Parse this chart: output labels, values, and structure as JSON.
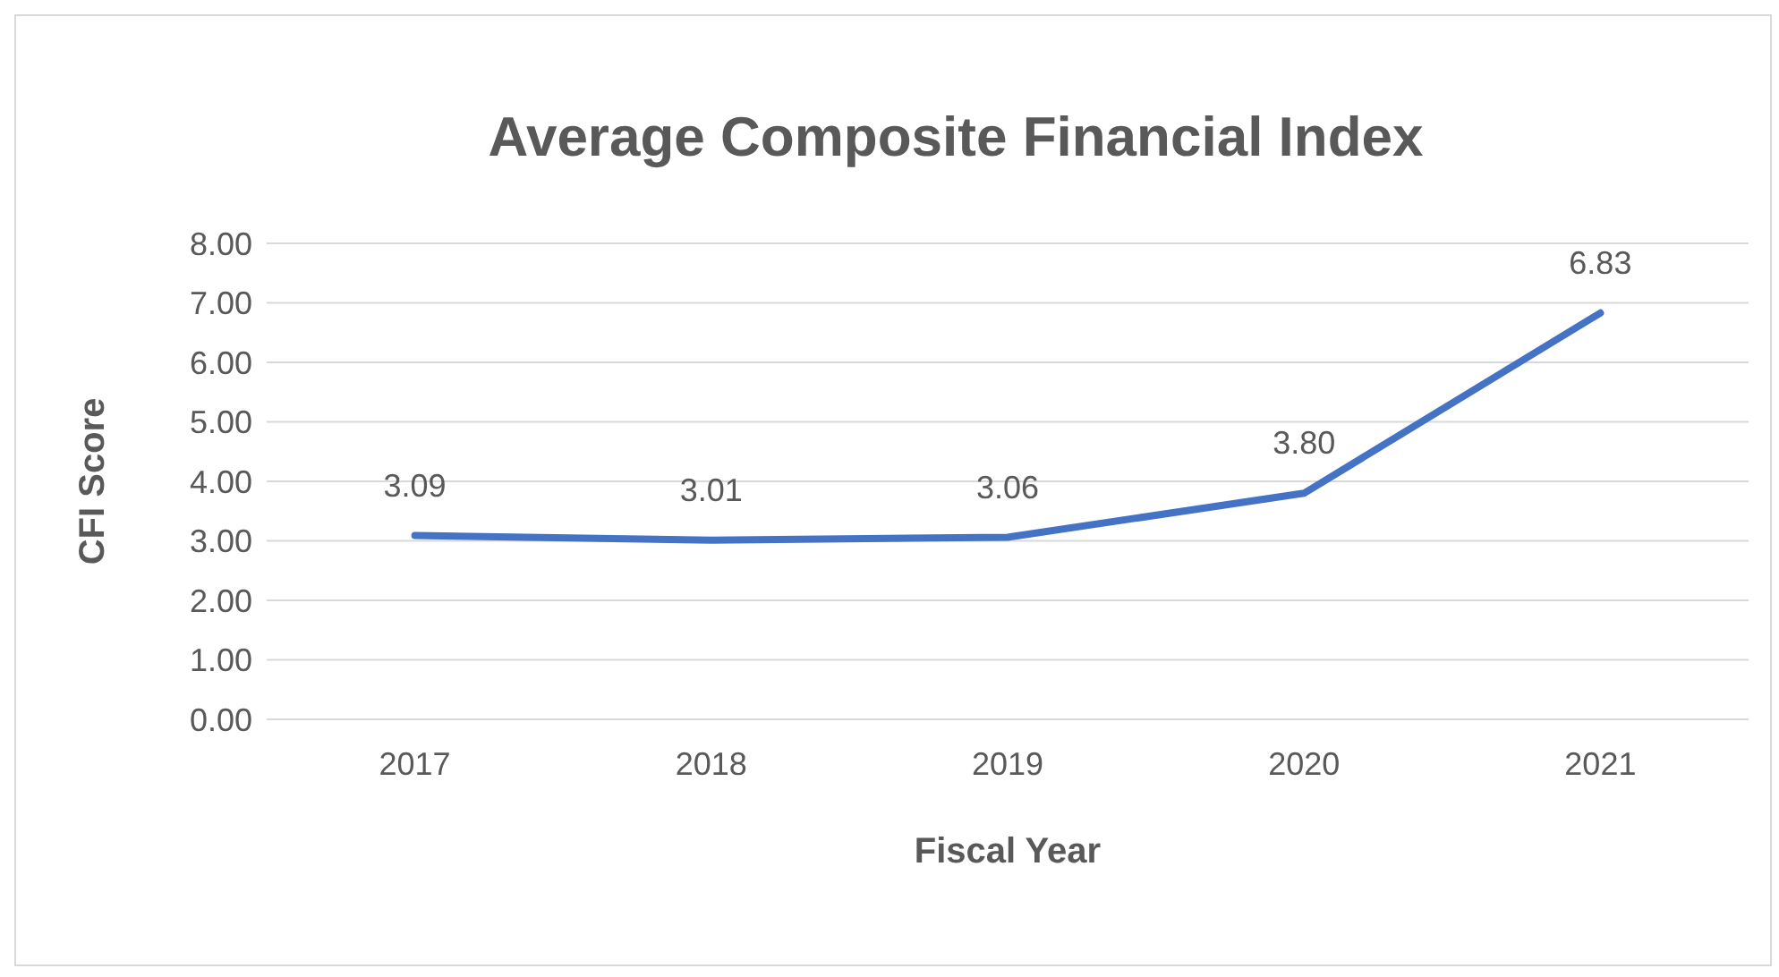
{
  "chart_data": {
    "type": "line",
    "title": "Average Composite Financial Index",
    "xlabel": "Fiscal Year",
    "ylabel": "CFI Score",
    "categories": [
      "2017",
      "2018",
      "2019",
      "2020",
      "2021"
    ],
    "series": [
      {
        "color": "#4472c4",
        "values": [
          3.09,
          3.01,
          3.06,
          3.8,
          6.83
        ],
        "value_labels": [
          "3.09",
          "3.01",
          "3.06",
          "3.80",
          "6.83"
        ]
      }
    ],
    "ylim": [
      0,
      8
    ],
    "yticks": [
      {
        "value": 0,
        "label": "0.00"
      },
      {
        "value": 1,
        "label": "1.00"
      },
      {
        "value": 2,
        "label": "2.00"
      },
      {
        "value": 3,
        "label": "3.00"
      },
      {
        "value": 4,
        "label": "4.00"
      },
      {
        "value": 5,
        "label": "5.00"
      },
      {
        "value": 6,
        "label": "6.00"
      },
      {
        "value": 7,
        "label": "7.00"
      },
      {
        "value": 8,
        "label": "8.00"
      }
    ],
    "grid": "y",
    "legend": false,
    "marker": "none",
    "line_style": "solid"
  }
}
